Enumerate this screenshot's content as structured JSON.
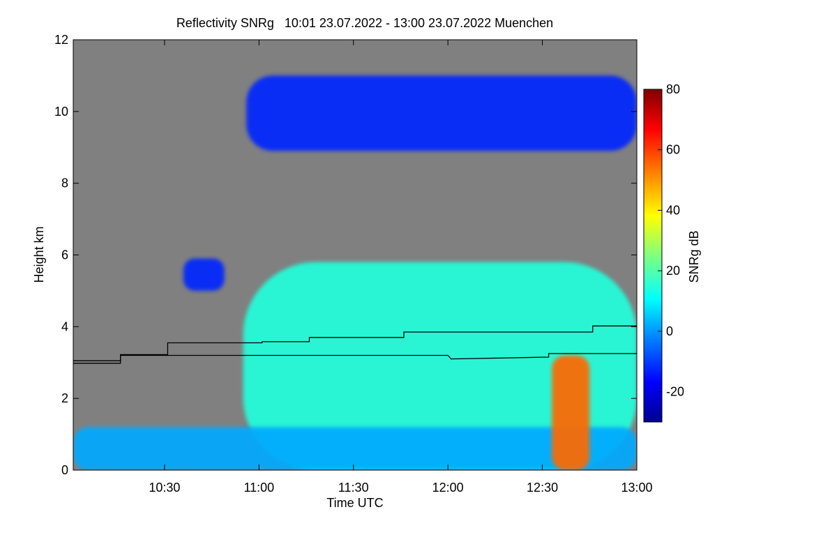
{
  "chart_data": {
    "type": "heatmap",
    "title": "Reflectivity SNRg   10:01 23.07.2022 - 13:00 23.07.2022 Muenchen",
    "xlabel": "Time UTC",
    "ylabel": "Height km",
    "xlim_minutes_utc": [
      601,
      780
    ],
    "ylim_km": [
      0,
      12
    ],
    "xticks": [
      {
        "value": 630,
        "label": "10:30"
      },
      {
        "value": 660,
        "label": "11:00"
      },
      {
        "value": 690,
        "label": "11:30"
      },
      {
        "value": 720,
        "label": "12:00"
      },
      {
        "value": 750,
        "label": "12:30"
      },
      {
        "value": 780,
        "label": "13:00"
      }
    ],
    "yticks": [
      0,
      2,
      4,
      6,
      8,
      10,
      12
    ],
    "background_color": "#808080",
    "colorbar": {
      "label": "SNRg dB",
      "range": [
        -30,
        80
      ],
      "ticks": [
        -20,
        0,
        20,
        40,
        60,
        80
      ],
      "colormap": [
        "#00008f",
        "#0000ff",
        "#0080ff",
        "#00ffff",
        "#80ff80",
        "#ffff00",
        "#ff8000",
        "#ff0000",
        "#800000"
      ]
    },
    "cloud_regions": [
      {
        "name": "cirrus layer",
        "t_start": 656,
        "t_end": 780,
        "h_bottom": 8.9,
        "h_top": 11.0,
        "snr_db": -12
      },
      {
        "name": "mid-level cloud and precipitation",
        "t_start": 655,
        "t_end": 780,
        "h_bottom": 0.0,
        "h_top": 5.8,
        "snr_db": 15
      },
      {
        "name": "isolated mid-level patch",
        "t_start": 636,
        "t_end": 649,
        "h_bottom": 5.0,
        "h_top": 5.9,
        "snr_db": -12
      },
      {
        "name": "boundary layer clutter",
        "t_start": 601,
        "t_end": 780,
        "h_bottom": 0.0,
        "h_top": 1.2,
        "snr_db": 2
      },
      {
        "name": "heavy rain shaft",
        "t_start": 753,
        "t_end": 765,
        "h_bottom": 0.0,
        "h_top": 3.2,
        "snr_db": 55
      }
    ],
    "lines": [
      {
        "name": "upper step line",
        "color": "#000000",
        "points": [
          [
            601,
            3.05
          ],
          [
            616,
            3.05
          ],
          [
            616,
            3.22
          ],
          [
            631,
            3.22
          ],
          [
            631,
            3.55
          ],
          [
            661,
            3.55
          ],
          [
            661,
            3.58
          ],
          [
            676,
            3.58
          ],
          [
            676,
            3.7
          ],
          [
            706,
            3.7
          ],
          [
            706,
            3.85
          ],
          [
            766,
            3.85
          ],
          [
            766,
            4.02
          ],
          [
            780,
            4.02
          ]
        ]
      },
      {
        "name": "lower step line",
        "color": "#000000",
        "points": [
          [
            601,
            2.98
          ],
          [
            616,
            2.98
          ],
          [
            616,
            3.2
          ],
          [
            720,
            3.2
          ],
          [
            721,
            3.1
          ],
          [
            752,
            3.15
          ],
          [
            752,
            3.25
          ],
          [
            780,
            3.25
          ]
        ]
      }
    ]
  }
}
